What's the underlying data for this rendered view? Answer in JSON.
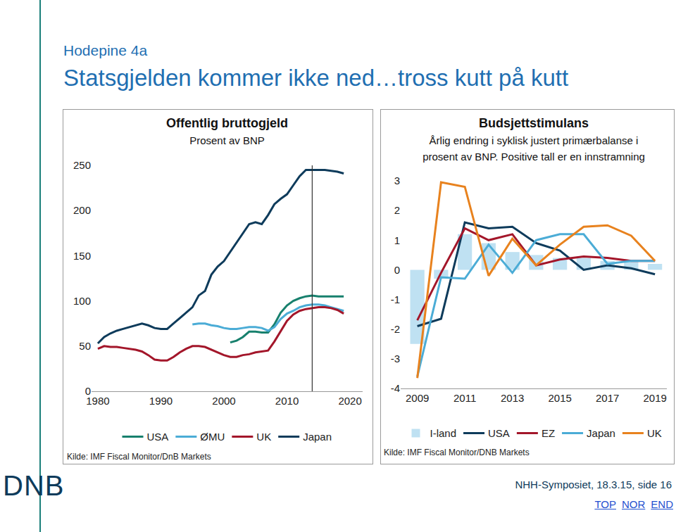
{
  "page": {
    "header": "Hodepine 4a",
    "title": "Statsgjelden kommer ikke ned…tross kutt på kutt",
    "logo": "DNB",
    "footer": "NHH-Symposiet, 18.3.15, side 16",
    "links": [
      "TOP",
      "NOR",
      "END"
    ]
  },
  "chart_data": [
    {
      "type": "line",
      "title": "Offentlig bruttogjeld",
      "subtitle": [
        "Prosent av BNP"
      ],
      "source": "Kilde: IMF Fiscal Monitor/DnB Markets",
      "x": [
        1980,
        1981,
        1982,
        1983,
        1984,
        1985,
        1986,
        1987,
        1988,
        1989,
        1990,
        1991,
        1992,
        1993,
        1994,
        1995,
        1996,
        1997,
        1998,
        1999,
        2000,
        2001,
        2002,
        2003,
        2004,
        2005,
        2006,
        2007,
        2008,
        2009,
        2010,
        2011,
        2012,
        2013,
        2014,
        2015,
        2016,
        2017,
        2018,
        2019,
        2020
      ],
      "series": [
        {
          "name": "USA",
          "color": "#17806d",
          "values": [
            null,
            null,
            null,
            null,
            null,
            null,
            null,
            null,
            null,
            null,
            null,
            null,
            null,
            null,
            null,
            null,
            null,
            null,
            null,
            null,
            null,
            54,
            56,
            60,
            66,
            66,
            65,
            65,
            74,
            87,
            95,
            100,
            103,
            105,
            106,
            105,
            105,
            105,
            105,
            105,
            null
          ]
        },
        {
          "name": "ØMU",
          "color": "#4bacd6",
          "values": [
            null,
            null,
            null,
            null,
            null,
            null,
            null,
            null,
            null,
            null,
            null,
            null,
            null,
            null,
            null,
            74,
            75,
            75,
            73,
            72,
            70,
            69,
            69,
            70,
            71,
            71,
            70,
            67,
            71,
            80,
            86,
            89,
            93,
            95,
            96,
            96,
            95,
            93,
            91,
            89,
            null
          ]
        },
        {
          "name": "UK",
          "color": "#a3162a",
          "values": [
            47,
            50,
            49,
            49,
            48,
            47,
            46,
            44,
            40,
            35,
            34,
            34,
            38,
            43,
            47,
            50,
            50,
            49,
            46,
            43,
            40,
            38,
            38,
            40,
            41,
            43,
            44,
            45,
            55,
            67,
            78,
            85,
            89,
            91,
            92,
            93,
            93,
            92,
            90,
            86,
            null
          ]
        },
        {
          "name": "Japan",
          "color": "#0e3b5b",
          "values": [
            53,
            60,
            64,
            67,
            69,
            71,
            73,
            75,
            73,
            70,
            69,
            69,
            75,
            81,
            87,
            93,
            106,
            111,
            129,
            138,
            144,
            154,
            164,
            175,
            185,
            187,
            185,
            195,
            207,
            213,
            218,
            228,
            238,
            245,
            245,
            245,
            245,
            244,
            243,
            241,
            null
          ]
        }
      ],
      "vline_x": 2014,
      "xlim": [
        1979,
        2022
      ],
      "xticks": [
        1980,
        1990,
        2000,
        2010,
        2020
      ],
      "ylim": [
        0,
        250
      ],
      "yticks": [
        0,
        50,
        100,
        150,
        200,
        250
      ],
      "grid": false,
      "legend": "bottom"
    },
    {
      "type": "bar",
      "title": "Budsjettstimulans",
      "subtitle": [
        "Årlig endring i syklisk justert primærbalanse i",
        "prosent av BNP. Positive tall er en innstramning"
      ],
      "source": "Kilde: IMF Fiscal Monitor/DNB Markets",
      "x": [
        2009,
        2010,
        2011,
        2012,
        2013,
        2014,
        2015,
        2016,
        2017,
        2018,
        2019
      ],
      "series": [
        {
          "name": "I-land",
          "type": "bar",
          "color": "#bfe1f2",
          "values": [
            -2.5,
            -0.3,
            1.2,
            0.9,
            0.6,
            0.5,
            0.4,
            0.4,
            0.3,
            0.3,
            0.2
          ]
        },
        {
          "name": "USA",
          "type": "line",
          "color": "#0e3b5b",
          "values": [
            -1.9,
            -1.65,
            1.6,
            1.4,
            1.45,
            0.9,
            0.65,
            0.0,
            0.15,
            0.05,
            -0.15
          ]
        },
        {
          "name": "EZ",
          "type": "line",
          "color": "#a3162a",
          "values": [
            -1.7,
            -0.1,
            1.4,
            1.0,
            1.2,
            0.15,
            0.35,
            0.45,
            0.4,
            0.3,
            0.3
          ]
        },
        {
          "name": "Japan",
          "type": "line",
          "color": "#4bacd6",
          "values": [
            -3.6,
            -0.25,
            -0.3,
            0.85,
            -0.1,
            1.0,
            1.2,
            1.2,
            0.2,
            0.3,
            0.3
          ]
        },
        {
          "name": "UK",
          "type": "line",
          "color": "#e8821e",
          "values": [
            -3.65,
            2.95,
            2.8,
            -0.2,
            1.05,
            0.15,
            0.85,
            1.45,
            1.5,
            1.15,
            0.3
          ]
        }
      ],
      "xlim": [
        2008.3,
        2019.5
      ],
      "xticks": [
        2009,
        2011,
        2013,
        2015,
        2017,
        2019
      ],
      "ylim": [
        -4,
        3
      ],
      "yticks": [
        -4,
        -3,
        -2,
        -1,
        0,
        1,
        2,
        3
      ],
      "grid": false,
      "legend": "bottom"
    }
  ]
}
